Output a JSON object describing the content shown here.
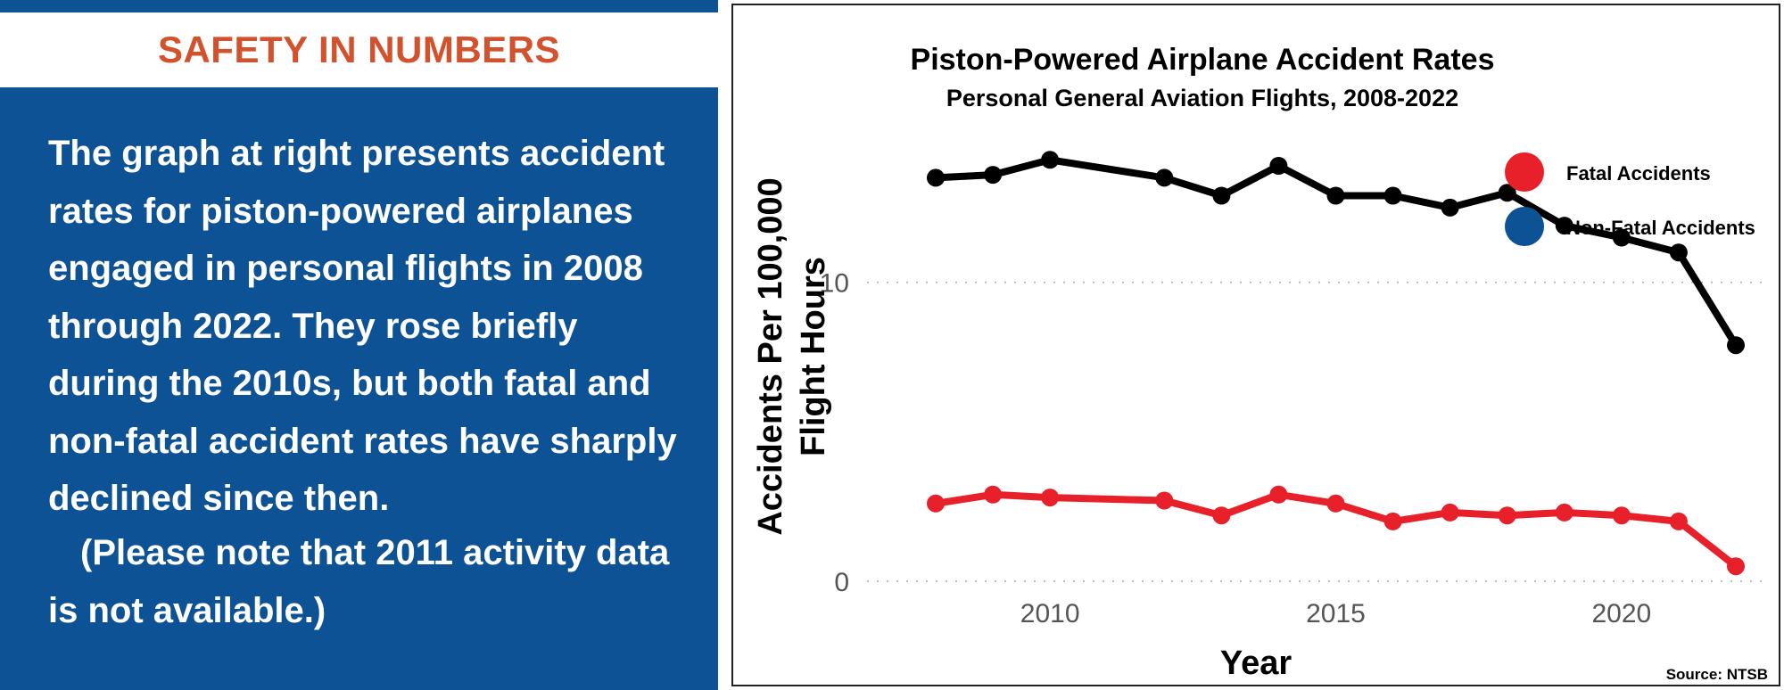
{
  "left_panel": {
    "header": "SAFETY IN NUMBERS",
    "paragraph": "The graph at right presents accident rates for piston-powered airplanes engaged in personal flights in 2008 through 2022. They rose briefly during the 2010s, but both fatal and non-fatal accident rates have sharply declined since then.",
    "note": "(Please note that 2011 activity data is not available.)",
    "colors": {
      "header_text": "#d2522e",
      "panel_bg": "#0d5294",
      "body_text": "#ffffff"
    }
  },
  "chart_data": {
    "type": "line",
    "title": "Piston-Powered Airplane Accident Rates",
    "subtitle": "Personal General Aviation Flights, 2008-2022",
    "xlabel": "Year",
    "ylabel_line1": "Accidents Per 100,000",
    "ylabel_line2": "Flight Hours",
    "source": "Source: NTSB",
    "xlim": [
      2008,
      2022
    ],
    "ylim": [
      0,
      13.9
    ],
    "x_ticks": [
      2010,
      2015,
      2020
    ],
    "y_ticks": [
      0,
      10
    ],
    "grid": "horizontal dotted",
    "legend_position": "top-right",
    "legend": [
      {
        "label": "Fatal Accidents",
        "color": "#e8202a"
      },
      {
        "label": "Non-Fatal Accidents",
        "color": "#0d5294"
      }
    ],
    "series": [
      {
        "color": "#000000",
        "points": [
          [
            2008,
            13.5
          ],
          [
            2009,
            13.6
          ],
          [
            2010,
            14.1
          ],
          [
            2012,
            13.5
          ],
          [
            2013,
            12.9
          ],
          [
            2014,
            13.9
          ],
          [
            2015,
            12.9
          ],
          [
            2016,
            12.9
          ],
          [
            2017,
            12.5
          ],
          [
            2018,
            13.0
          ],
          [
            2019,
            11.9
          ],
          [
            2020,
            11.5
          ],
          [
            2021,
            11.0
          ],
          [
            2022,
            7.9
          ]
        ]
      },
      {
        "color": "#e8202a",
        "points": [
          [
            2008,
            2.6
          ],
          [
            2009,
            2.9
          ],
          [
            2010,
            2.8
          ],
          [
            2012,
            2.7
          ],
          [
            2013,
            2.2
          ],
          [
            2014,
            2.9
          ],
          [
            2015,
            2.6
          ],
          [
            2016,
            2.0
          ],
          [
            2017,
            2.3
          ],
          [
            2018,
            2.2
          ],
          [
            2019,
            2.3
          ],
          [
            2020,
            2.2
          ],
          [
            2021,
            2.0
          ],
          [
            2022,
            0.5
          ]
        ]
      }
    ]
  }
}
